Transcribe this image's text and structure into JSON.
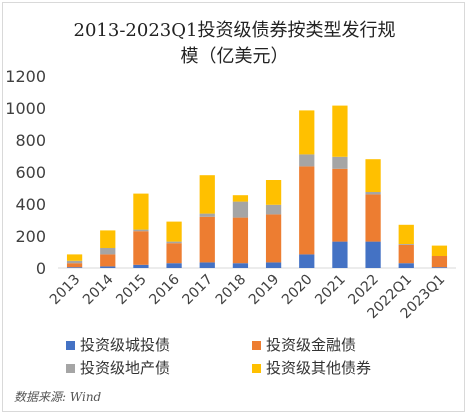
{
  "chart_data": {
    "type": "bar",
    "stacked": true,
    "title": "2013-2023Q1投资级债券按类型发行规模（亿美元）",
    "title_lines": [
      "2013-2023Q1投资级债券按类型发行规",
      "模（亿美元）"
    ],
    "categories": [
      "2013",
      "2014",
      "2015",
      "2016",
      "2017",
      "2018",
      "2019",
      "2020",
      "2021",
      "2022",
      "2022Q1",
      "2023Q1"
    ],
    "yticks": [
      "0",
      "200",
      "400",
      "600",
      "800",
      "1000",
      "1200"
    ],
    "ylim": [
      0,
      1200
    ],
    "grid": false,
    "legend_position": "bottom",
    "series": [
      {
        "name": "投资级城投债",
        "color": "#4472C4",
        "values": [
          5,
          10,
          20,
          30,
          35,
          30,
          35,
          85,
          165,
          165,
          30,
          5
        ]
      },
      {
        "name": "投资级金融债",
        "color": "#ED7D31",
        "values": [
          25,
          75,
          210,
          125,
          285,
          285,
          300,
          550,
          455,
          295,
          115,
          70
        ]
      },
      {
        "name": "投资级地产债",
        "color": "#A5A5A5",
        "values": [
          15,
          40,
          10,
          10,
          20,
          100,
          60,
          75,
          75,
          15,
          5,
          0
        ]
      },
      {
        "name": "投资级其他债券",
        "color": "#FFC000",
        "values": [
          40,
          110,
          225,
          125,
          240,
          40,
          155,
          275,
          320,
          205,
          120,
          65
        ]
      }
    ]
  },
  "source": "数据来源: Wind"
}
